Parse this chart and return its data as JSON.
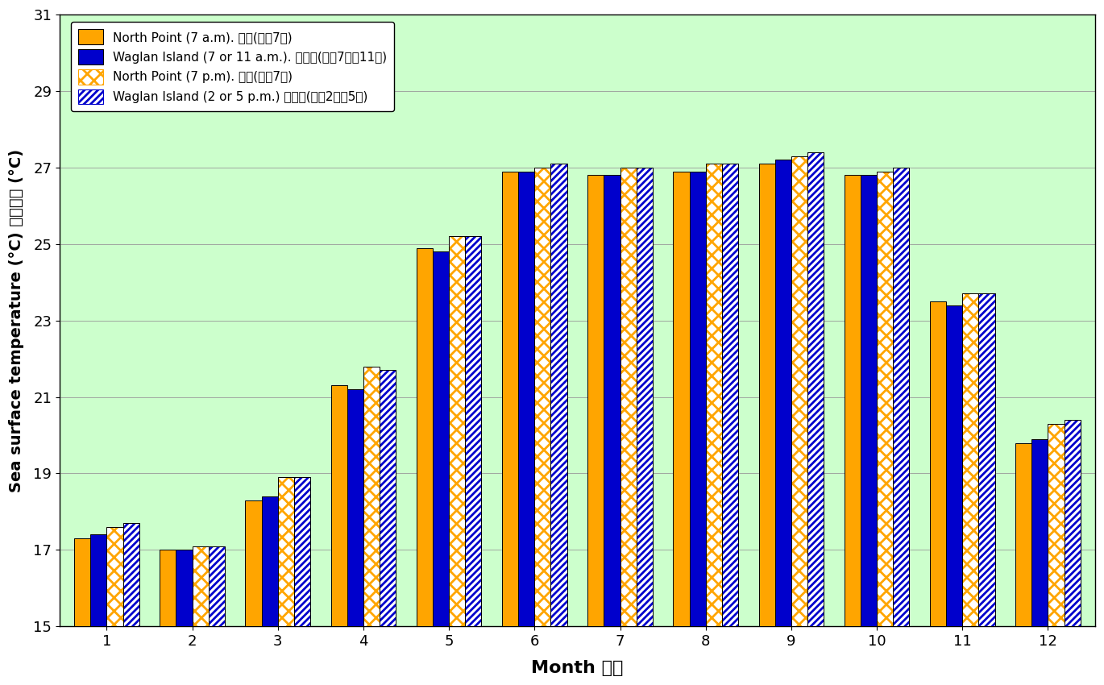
{
  "months": [
    1,
    2,
    3,
    4,
    5,
    6,
    7,
    8,
    9,
    10,
    11,
    12
  ],
  "north_point_am": [
    17.3,
    17.0,
    18.3,
    21.3,
    24.9,
    26.9,
    26.8,
    26.9,
    27.1,
    26.8,
    23.5,
    19.8
  ],
  "waglan_am": [
    17.4,
    17.0,
    18.4,
    21.2,
    24.8,
    26.9,
    26.8,
    26.9,
    27.2,
    26.8,
    23.4,
    19.9
  ],
  "north_point_pm": [
    17.6,
    17.1,
    18.9,
    21.8,
    25.2,
    27.0,
    27.0,
    27.1,
    27.3,
    26.9,
    23.7,
    20.3
  ],
  "waglan_pm": [
    17.7,
    17.1,
    18.9,
    21.7,
    25.2,
    27.1,
    27.0,
    27.1,
    27.4,
    27.0,
    23.7,
    20.4
  ],
  "orange": "#FFA500",
  "blue": "#0000CC",
  "bg_color": "#CCFFCC",
  "ylim": [
    15,
    31
  ],
  "yticks": [
    15,
    17,
    19,
    21,
    23,
    25,
    27,
    29,
    31
  ],
  "xlabel": "Month 月份",
  "ylabel": "Sea surface temperature (°C) 海面温度 (°C)",
  "legend1": "North Point (7 a.m). 北角(上午7時)",
  "legend2": "Waglan Island (7 or 11 a.m.). 橫琅島(上午7時或11時)",
  "legend3": "North Point (7 p.m). 北角(下午7時)",
  "legend4": "Waglan Island (2 or 5 p.m.) 橫琅島(下午2時或5時)",
  "bar_width": 0.19,
  "hatch_linewidth": 2.0
}
